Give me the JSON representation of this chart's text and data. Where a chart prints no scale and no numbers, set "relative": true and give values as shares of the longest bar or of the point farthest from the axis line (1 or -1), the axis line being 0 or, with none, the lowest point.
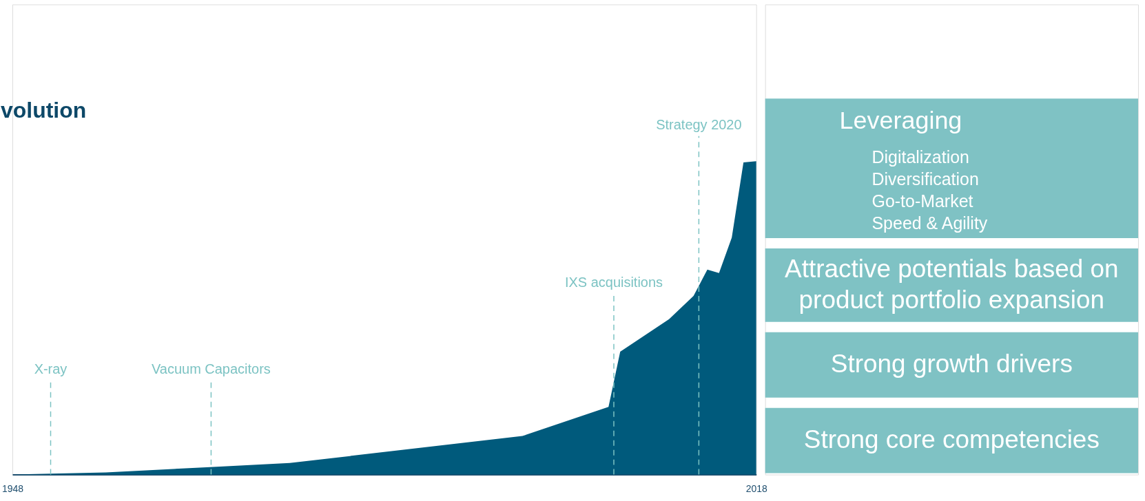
{
  "chart_data": [
    {
      "type": "area",
      "title": "volution",
      "relative": true,
      "color": "#005a7c",
      "xlim": [
        1948,
        2018
      ],
      "xticks": [
        1948,
        2018
      ],
      "x": [
        1948,
        1956.8,
        1966.6,
        1974.1,
        1996.0,
        2004.1,
        2005.2,
        2009.8,
        2012.1,
        2013.4,
        2014.5,
        2015.7,
        2016.8,
        2018
      ],
      "values": [
        0,
        0.007,
        0.024,
        0.037,
        0.123,
        0.216,
        0.392,
        0.496,
        0.57,
        0.654,
        0.643,
        0.756,
        0.996,
        1
      ],
      "ref_lines": [
        {
          "axis": "x",
          "value": 1951.6,
          "label": "X-ray",
          "color": "#7cc3c3",
          "line_style": "dashed"
        },
        {
          "axis": "x",
          "value": 1966.7,
          "label": "Vacuum Capacitors",
          "color": "#7cc3c3",
          "line_style": "dashed"
        },
        {
          "axis": "x",
          "value": 2004.6,
          "label": "IXS acquisitions",
          "color": "#7cc3c3",
          "line_style": "dashed"
        },
        {
          "axis": "x",
          "value": 2012.6,
          "label": "Strategy 2020",
          "color": "#7cc3c3",
          "line_style": "dashed"
        }
      ]
    },
    {
      "type": "other",
      "color": "#7fc2c4",
      "categories": [
        "Leveraging",
        "Attractive potentials based on\nproduct portfolio expansion",
        "Strong growth drivers",
        "Strong core competencies"
      ],
      "annotations": [
        "Digitalization",
        "Diversification",
        "Go-to-Market",
        "Speed & Agility"
      ]
    }
  ]
}
